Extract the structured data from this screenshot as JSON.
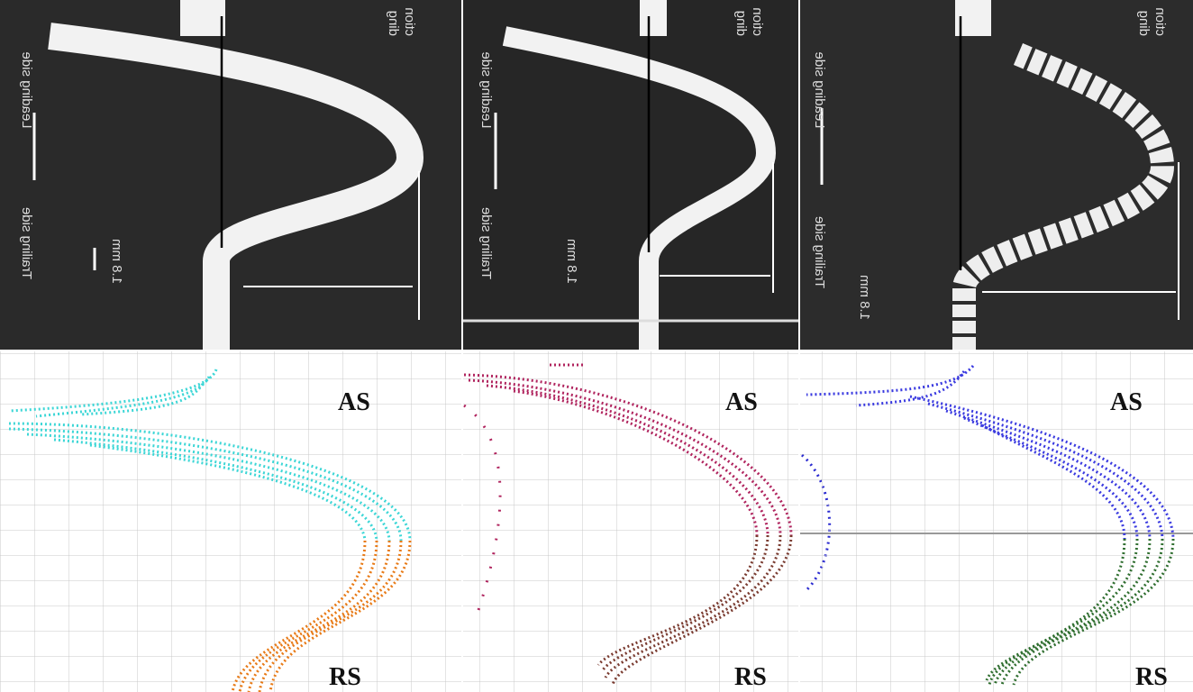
{
  "panels": [
    {
      "photo": {
        "leading": "Leading side",
        "trailing": "Trailing side",
        "scale": "1.8 mm",
        "direction": [
          "ding",
          "ction"
        ]
      },
      "plot": {
        "top": "AS",
        "bottom": "RS"
      }
    },
    {
      "photo": {
        "leading": "Leading side",
        "trailing": "Trailing side",
        "scale": "1.8 mm",
        "direction": [
          "ding",
          "ction"
        ]
      },
      "plot": {
        "top": "AS",
        "bottom": "RS"
      }
    },
    {
      "photo": {
        "leading": "Leading side",
        "trailing": "Trailing side",
        "scale": "1.8 mm",
        "direction": [
          "ding",
          "ction"
        ]
      },
      "plot": {
        "top": "AS",
        "bottom": "RS"
      }
    }
  ]
}
